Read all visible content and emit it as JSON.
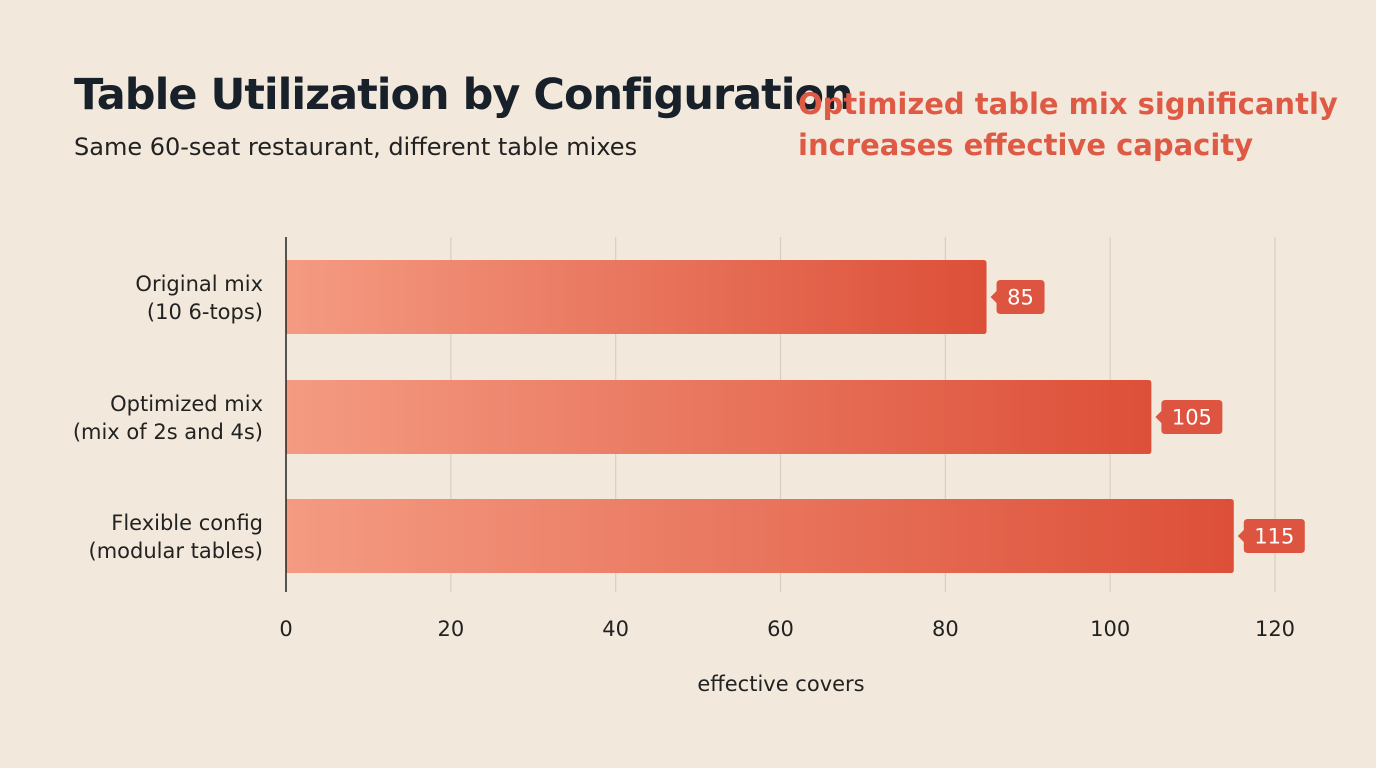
{
  "chart_data": {
    "type": "bar",
    "orientation": "horizontal",
    "title": "Table Utilization by Configuration",
    "subtitle": "Same 60-seat restaurant, different table mixes",
    "annotation": "Optimized table mix significantly increases effective capacity",
    "categories": [
      [
        "Original mix",
        "(10 6-tops)"
      ],
      [
        "Optimized mix",
        "(mix of 2s and 4s)"
      ],
      [
        "Flexible config",
        "(modular tables)"
      ]
    ],
    "values": [
      85,
      105,
      115
    ],
    "data_labels": [
      "85",
      "105",
      "115"
    ],
    "xlabel": "effective covers",
    "ylabel": "",
    "xlim": [
      0,
      120
    ],
    "xticks": [
      0,
      20,
      40,
      60,
      80,
      100,
      120
    ],
    "grid": "vertical",
    "colors": {
      "bar_start": "#f49b82",
      "bar_end": "#dd4f38",
      "label_bg": "#dd5540",
      "annotation": "#df5a45",
      "background": "#f2e9dc"
    }
  }
}
